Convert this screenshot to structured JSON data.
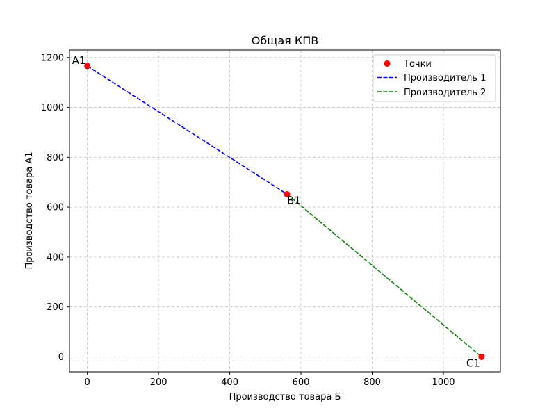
{
  "chart_data": {
    "type": "line",
    "title": "Общая КПВ",
    "xlabel": "Производство товара Б",
    "ylabel": "Производство товара А1",
    "xlim": [
      -50,
      1160
    ],
    "ylim": [
      -60,
      1230
    ],
    "xticks": [
      0,
      200,
      400,
      600,
      800,
      1000
    ],
    "yticks": [
      0,
      200,
      400,
      600,
      800,
      1000,
      1200
    ],
    "grid": true,
    "legend_position": "top-right",
    "points": {
      "name": "Точки",
      "color": "#ff0000",
      "data": [
        {
          "label": "A1",
          "x": 0,
          "y": 1166
        },
        {
          "label": "B1",
          "x": 561,
          "y": 652
        },
        {
          "label": "C1",
          "x": 1107,
          "y": 0
        }
      ]
    },
    "series": [
      {
        "name": "Производитель 1",
        "color": "#0000ff",
        "x": [
          0,
          561
        ],
        "y": [
          1166,
          652
        ]
      },
      {
        "name": "Производитель 2",
        "color": "#008000",
        "x": [
          561,
          1107
        ],
        "y": [
          652,
          0
        ]
      }
    ]
  }
}
